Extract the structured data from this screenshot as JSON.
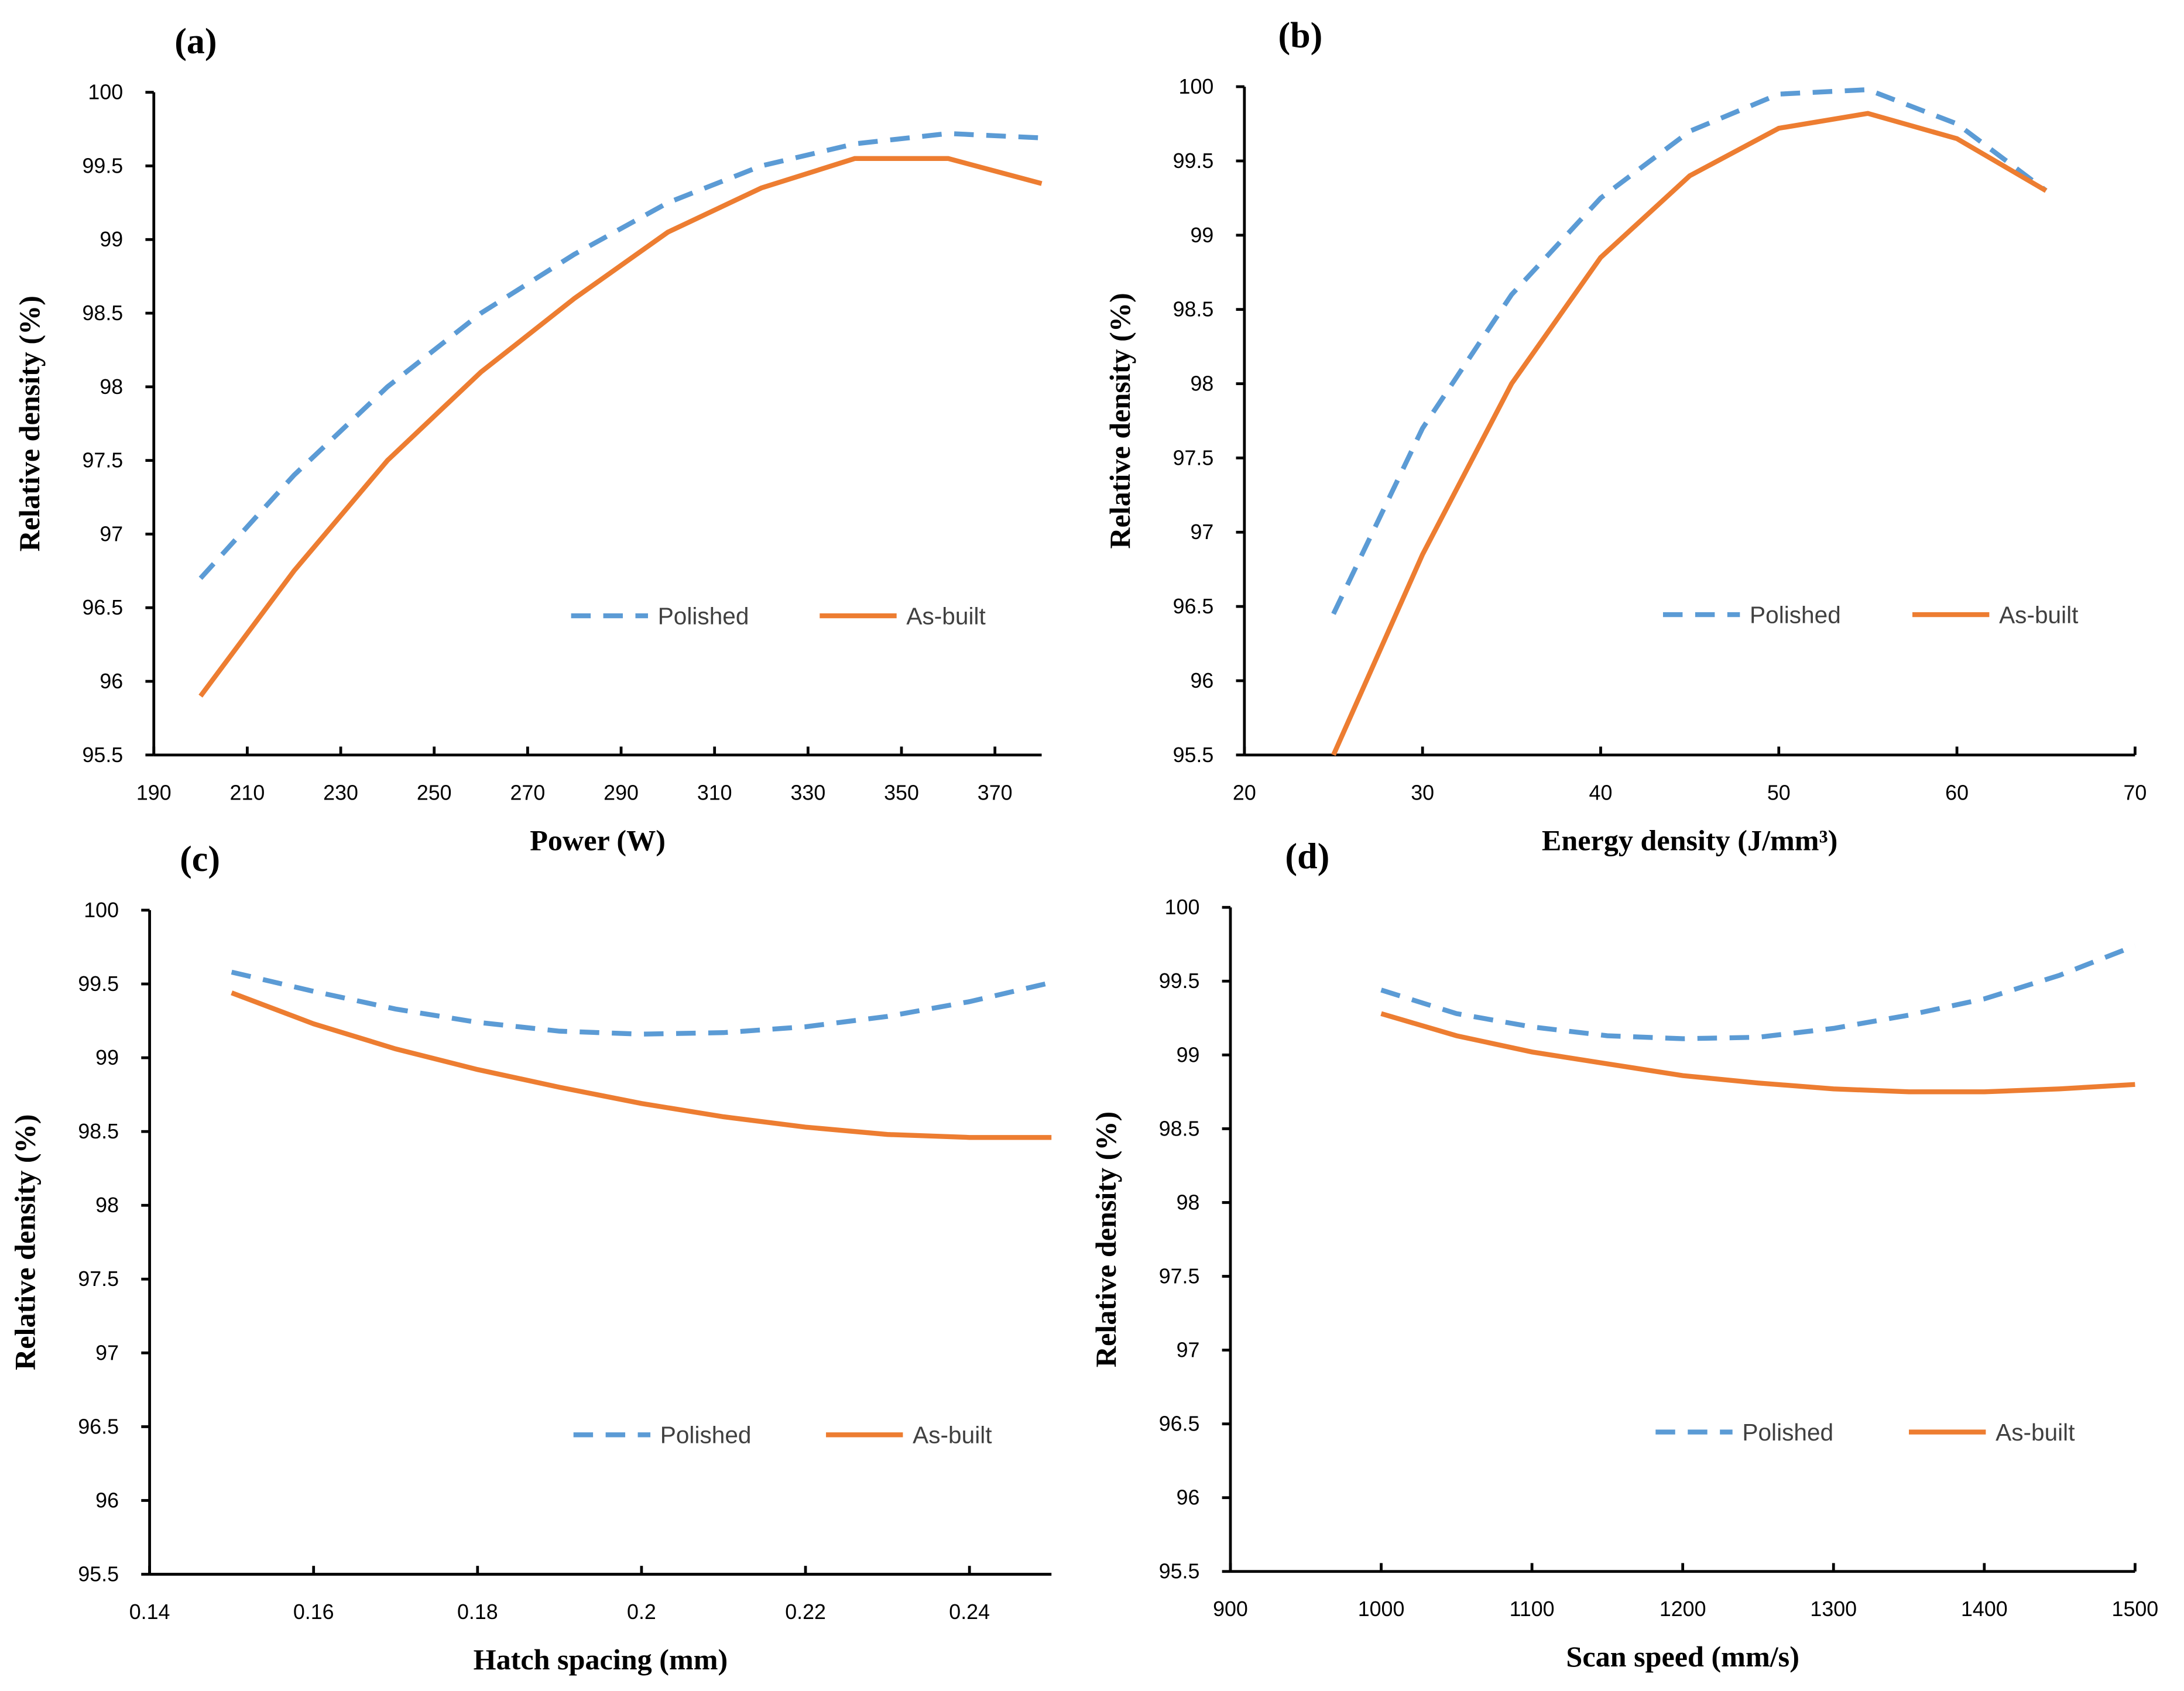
{
  "chart_data": [
    {
      "type": "line",
      "title": "(a)",
      "x_label": "Power (W)",
      "y_label": "Relative density (%)",
      "x": [
        200,
        220,
        240,
        260,
        280,
        300,
        320,
        340,
        360,
        380
      ],
      "series": [
        {
          "name": "Polished",
          "color": "#5b9bd5",
          "line_style": "dashed",
          "values": [
            96.7,
            97.4,
            98.0,
            98.5,
            98.9,
            99.25,
            99.5,
            99.65,
            99.72,
            99.69
          ]
        },
        {
          "name": "As-built",
          "color": "#ed7d31",
          "line_style": "solid",
          "values": [
            95.9,
            96.75,
            97.5,
            98.1,
            98.6,
            99.05,
            99.35,
            99.55,
            99.55,
            99.38
          ]
        }
      ],
      "xlim": [
        190,
        380
      ],
      "xticks": [
        190,
        210,
        230,
        250,
        270,
        290,
        310,
        330,
        350,
        370
      ],
      "ylim": [
        95.5,
        100
      ],
      "yticks": [
        95.5,
        96,
        96.5,
        97,
        97.5,
        98,
        98.5,
        99,
        99.5,
        100
      ],
      "grid": false,
      "legend": "lower right"
    },
    {
      "type": "line",
      "title": "(b)",
      "x_label": "Energy density (J/mm³)",
      "y_label": "Relative density (%)",
      "x": [
        25,
        30,
        35,
        40,
        45,
        50,
        55,
        60,
        65
      ],
      "series": [
        {
          "name": "Polished",
          "color": "#5b9bd5",
          "line_style": "dashed",
          "values": [
            96.45,
            97.7,
            98.6,
            99.25,
            99.7,
            99.95,
            99.98,
            99.75,
            99.3
          ]
        },
        {
          "name": "As-built",
          "color": "#ed7d31",
          "line_style": "solid",
          "values": [
            95.5,
            96.85,
            98.0,
            98.85,
            99.4,
            99.72,
            99.82,
            99.65,
            99.3
          ]
        }
      ],
      "xlim": [
        20,
        70
      ],
      "xticks": [
        20,
        30,
        40,
        50,
        60,
        70
      ],
      "ylim": [
        95.5,
        100
      ],
      "yticks": [
        95.5,
        96,
        96.5,
        97,
        97.5,
        98,
        98.5,
        99,
        99.5,
        100
      ],
      "grid": false,
      "legend": "lower right"
    },
    {
      "type": "line",
      "title": "(c)",
      "x_label": "Hatch spacing (mm)",
      "y_label": "Relative density (%)",
      "x": [
        0.15,
        0.16,
        0.17,
        0.18,
        0.19,
        0.2,
        0.21,
        0.22,
        0.23,
        0.24,
        0.25
      ],
      "series": [
        {
          "name": "Polished",
          "color": "#5b9bd5",
          "line_style": "dashed",
          "values": [
            99.58,
            99.45,
            99.33,
            99.24,
            99.18,
            99.16,
            99.17,
            99.21,
            99.28,
            99.38,
            99.51
          ]
        },
        {
          "name": "As-built",
          "color": "#ed7d31",
          "line_style": "solid",
          "values": [
            99.44,
            99.23,
            99.06,
            98.92,
            98.8,
            98.69,
            98.6,
            98.53,
            98.48,
            98.46,
            98.46
          ]
        }
      ],
      "xlim": [
        0.14,
        0.25
      ],
      "xticks": [
        0.14,
        0.16,
        0.18,
        0.2,
        0.22,
        0.24
      ],
      "ylim": [
        95.5,
        100
      ],
      "yticks": [
        95.5,
        96,
        96.5,
        97,
        97.5,
        98,
        98.5,
        99,
        99.5,
        100
      ],
      "grid": false,
      "legend": "lower right"
    },
    {
      "type": "line",
      "title": "(d)",
      "x_label": "Scan speed (mm/s)",
      "y_label": "Relative density (%)",
      "x": [
        1000,
        1050,
        1100,
        1150,
        1200,
        1250,
        1300,
        1350,
        1400,
        1450,
        1500
      ],
      "series": [
        {
          "name": "Polished",
          "color": "#5b9bd5",
          "line_style": "dashed",
          "values": [
            99.44,
            99.28,
            99.19,
            99.13,
            99.11,
            99.12,
            99.18,
            99.27,
            99.38,
            99.54,
            99.74
          ]
        },
        {
          "name": "As-built",
          "color": "#ed7d31",
          "line_style": "solid",
          "values": [
            99.28,
            99.13,
            99.02,
            98.94,
            98.86,
            98.81,
            98.77,
            98.75,
            98.75,
            98.77,
            98.8
          ]
        }
      ],
      "xlim": [
        900,
        1500
      ],
      "xticks": [
        900,
        1000,
        1100,
        1200,
        1300,
        1400,
        1500
      ],
      "ylim": [
        95.5,
        100
      ],
      "yticks": [
        95.5,
        96,
        96.5,
        97,
        97.5,
        98,
        98.5,
        99,
        99.5,
        100
      ],
      "grid": false,
      "legend": "lower right"
    }
  ]
}
